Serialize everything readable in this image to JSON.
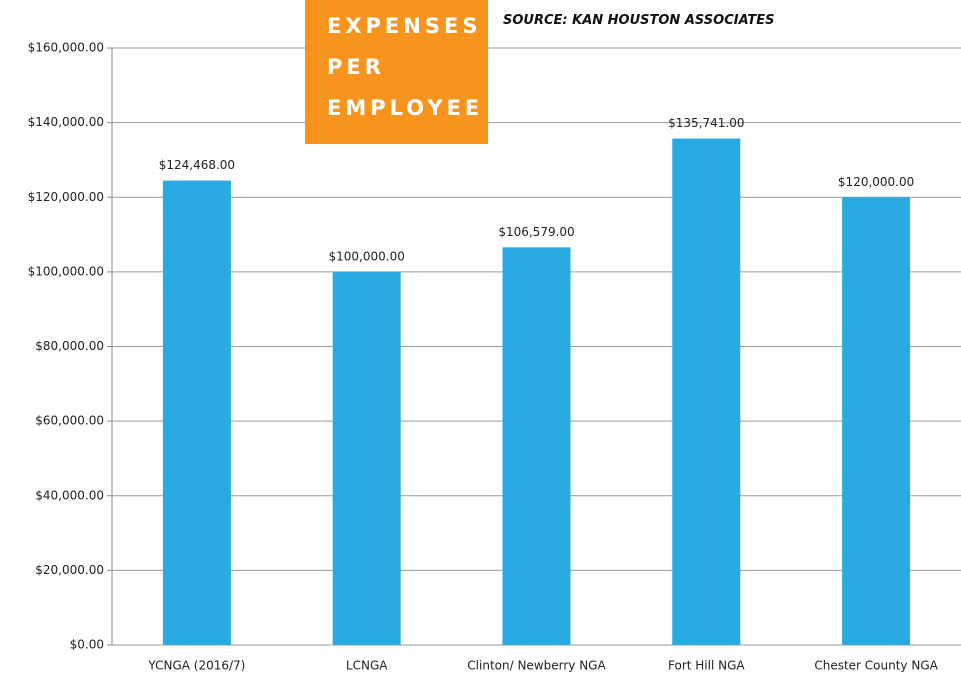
{
  "chart_data": {
    "type": "bar",
    "title": "EXPENSES PER EMPLOYEE",
    "subtitle": "SOURCE: KAN HOUSTON ASSOCIATES",
    "categories": [
      "YCNGA (2016/7)",
      "LCNGA",
      "Clinton/ Newberry NGA",
      "Fort Hill NGA",
      "Chester County NGA"
    ],
    "values": [
      124468,
      100000,
      106579,
      135741,
      120000
    ],
    "value_labels": [
      "$124,468.00",
      "$100,000.00",
      "$106,579.00",
      "$135,741.00",
      "$120,000.00"
    ],
    "color": "#29abe2",
    "ylim": [
      0,
      160000
    ],
    "yticks": [
      {
        "value": 0,
        "label": "$0.00"
      },
      {
        "value": 20000,
        "label": "$20,000.00"
      },
      {
        "value": 40000,
        "label": "$40,000.00"
      },
      {
        "value": 60000,
        "label": "$60,000.00"
      },
      {
        "value": 80000,
        "label": "$80,000.00"
      },
      {
        "value": 100000,
        "label": "$100,000.00"
      },
      {
        "value": 120000,
        "label": "$120,000.00"
      },
      {
        "value": 140000,
        "label": "$140,000.00"
      },
      {
        "value": 160000,
        "label": "$160,000.00"
      }
    ],
    "grid": true
  }
}
